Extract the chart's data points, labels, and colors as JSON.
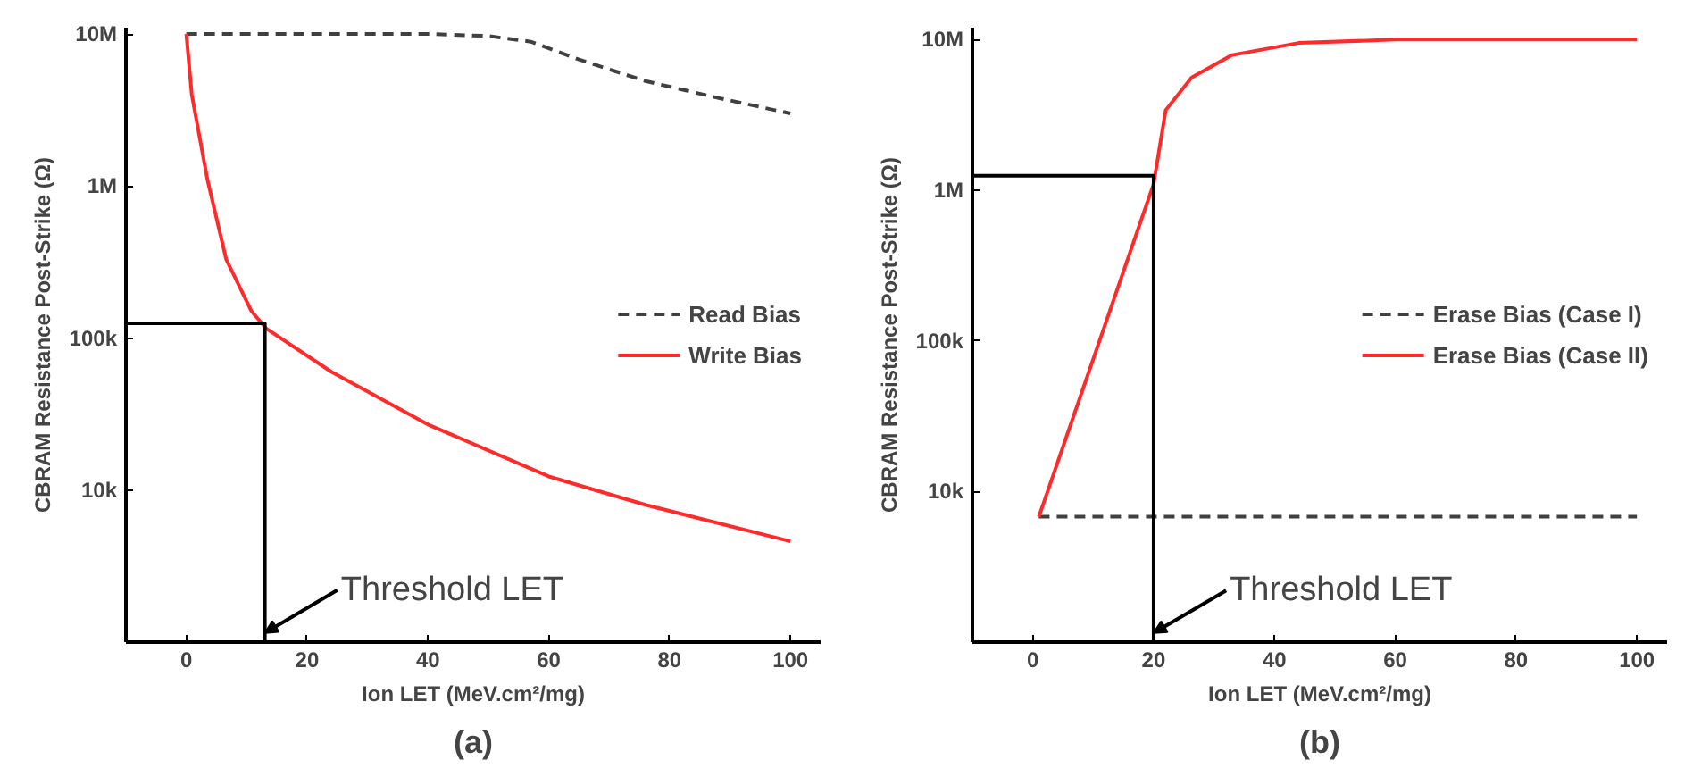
{
  "chart_data": [
    {
      "type": "line",
      "xlabel": "Ion LET (MeV.cm²/mg)",
      "ylabel": "CBRAM Resistance Post-Strike (Ω)",
      "log": "y",
      "grid": false,
      "legend": "right",
      "xlim": [
        -10,
        105
      ],
      "ylim": [
        1000,
        11000000
      ],
      "xticks": [
        0,
        20,
        40,
        60,
        80,
        100
      ],
      "yticks": [
        {
          "value": 10000,
          "label": "10k"
        },
        {
          "value": 100000,
          "label": "100k"
        },
        {
          "value": 1000000,
          "label": "1M"
        },
        {
          "value": 10000000,
          "label": "10M"
        }
      ],
      "series": [
        {
          "name": "Read Bias",
          "color": "#404040",
          "line_style": "dashed",
          "x": [
            0,
            20,
            40,
            50,
            57,
            65,
            76,
            88,
            100
          ],
          "values": [
            10000000,
            10000000,
            10000000,
            9700000,
            8900000,
            6800000,
            4900000,
            3800000,
            3000000
          ]
        },
        {
          "name": "Write Bias",
          "color": "#ff2a2a",
          "line_style": "solid",
          "x": [
            0,
            0.9,
            3.5,
            6.6,
            10.8,
            13.3,
            24,
            40,
            60,
            76,
            100
          ],
          "values": [
            10000000,
            4000000,
            1100000,
            330000,
            150000,
            115000,
            60000,
            27000,
            12300,
            8000,
            4600
          ]
        },
        {
          "color": "#000000",
          "line_style": "solid",
          "x": [
            -10,
            13,
            13
          ],
          "values": [
            125000,
            125000,
            1000
          ]
        }
      ],
      "annotations": [
        {
          "text": "Threshold LET",
          "x": 13,
          "y": 1000
        },
        "(a)"
      ]
    },
    {
      "type": "line",
      "xlabel": "Ion LET (MeV.cm²/mg)",
      "ylabel": "CBRAM Resistance Post-Strike (Ω)",
      "log": "y",
      "grid": false,
      "legend": "right",
      "xlim": [
        -10,
        105
      ],
      "ylim": [
        1000,
        12000000
      ],
      "xticks": [
        0,
        20,
        40,
        60,
        80,
        100
      ],
      "yticks": [
        {
          "value": 10000,
          "label": "10k"
        },
        {
          "value": 100000,
          "label": "100k"
        },
        {
          "value": 1000000,
          "label": "1M"
        },
        {
          "value": 10000000,
          "label": "10M"
        }
      ],
      "series": [
        {
          "name": "Erase Bias (Case I)",
          "color": "#404040",
          "line_style": "dashed",
          "x": [
            1,
            100
          ],
          "values": [
            6800,
            6800
          ]
        },
        {
          "name": "Erase Bias (Case II)",
          "color": "#ff2a2a",
          "line_style": "solid",
          "x": [
            1,
            20,
            22,
            26.3,
            33,
            44,
            60,
            100
          ],
          "values": [
            6800,
            1100000,
            3400000,
            5600000,
            7900000,
            9500000,
            10000000,
            10000000
          ]
        },
        {
          "color": "#000000",
          "line_style": "solid",
          "x": [
            -10,
            20,
            20
          ],
          "values": [
            1250000,
            1250000,
            1000
          ]
        }
      ],
      "annotations": [
        {
          "text": "Threshold LET",
          "x": 20,
          "y": 1000
        },
        "(b)"
      ]
    }
  ]
}
